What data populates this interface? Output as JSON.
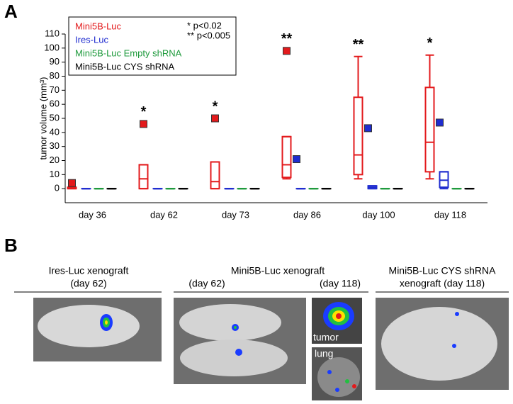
{
  "chart_data": {
    "type": "box",
    "panel_label": "A",
    "y_label": "tumor volume (mm³)",
    "categories": [
      "day 36",
      "day 62",
      "day 73",
      "day 86",
      "day 100",
      "day 118"
    ],
    "significance": [
      null,
      "*",
      "*",
      "**",
      "**",
      "*"
    ],
    "annotations": [
      "* p<0.02",
      "** p<0.005"
    ],
    "ylim": [
      -10,
      110
    ],
    "yticks": [
      0,
      10,
      20,
      30,
      40,
      50,
      60,
      70,
      80,
      90,
      100,
      110
    ],
    "series": [
      {
        "name": "Mini5B-Luc",
        "color": "#e31a1c",
        "min": [
          0,
          0,
          0,
          7,
          7,
          7
        ],
        "q1": [
          0,
          0,
          0,
          8,
          10,
          12
        ],
        "median": [
          0.5,
          7,
          5,
          17,
          24,
          33
        ],
        "q3": [
          1,
          17,
          19,
          37,
          65,
          72
        ],
        "max": [
          1,
          17,
          19,
          37,
          94,
          95
        ],
        "outliers": [
          4,
          46,
          50,
          98,
          null,
          null
        ]
      },
      {
        "name": "Ires-Luc",
        "color": "#1f2ccf",
        "min": [
          0,
          0,
          0,
          0,
          0,
          0
        ],
        "q1": [
          0,
          0,
          0,
          0,
          0,
          1
        ],
        "median": [
          0,
          0,
          0,
          0,
          1,
          6
        ],
        "q3": [
          0,
          0,
          0,
          0,
          2,
          12
        ],
        "max": [
          0,
          0,
          0,
          0,
          2,
          12
        ],
        "outliers": [
          null,
          null,
          null,
          21,
          43,
          47
        ]
      },
      {
        "name": "Mini5B-Luc Empty shRNA",
        "color": "#1e9a3c",
        "min": [
          0,
          0,
          0,
          0,
          0,
          0
        ],
        "q1": [
          0,
          0,
          0,
          0,
          0,
          0
        ],
        "median": [
          0,
          0,
          0,
          0,
          0,
          0
        ],
        "q3": [
          0,
          0,
          0,
          0,
          0,
          0
        ],
        "max": [
          0,
          0,
          0,
          0,
          0,
          0
        ],
        "outliers": [
          null,
          null,
          null,
          null,
          null,
          null
        ]
      },
      {
        "name": "Mini5B-Luc CYS shRNA",
        "color": "#000000",
        "min": [
          0,
          0,
          0,
          0,
          0,
          0
        ],
        "q1": [
          0,
          0,
          0,
          0,
          0,
          0
        ],
        "median": [
          0,
          0,
          0,
          0,
          0,
          0
        ],
        "q3": [
          0,
          0,
          0,
          0,
          0,
          0
        ],
        "max": [
          0,
          0,
          0,
          0,
          0,
          0
        ],
        "outliers": [
          null,
          null,
          null,
          null,
          null,
          null
        ]
      }
    ]
  },
  "panel_b": {
    "panel_label": "B",
    "groups": [
      {
        "title": "Ires-Luc xenograft",
        "subtitle": "(day 62)"
      },
      {
        "title": "Mini5B-Luc xenograft",
        "subtitle": "(day 62)",
        "subtitle_right": "(day 118)",
        "insets": [
          "tumor",
          "lung"
        ]
      },
      {
        "title": "Mini5B-Luc CYS shRNA",
        "subtitle": "xenograft (day 118)"
      }
    ]
  }
}
